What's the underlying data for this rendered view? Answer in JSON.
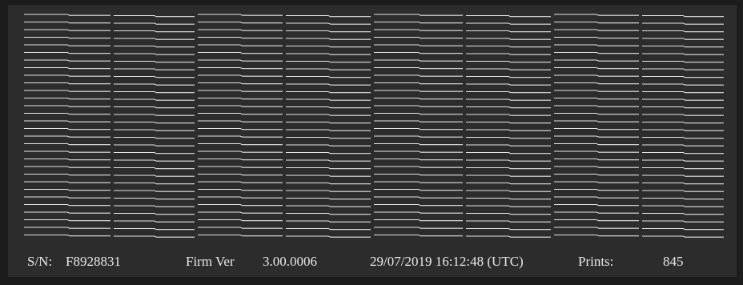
{
  "footer": {
    "serial": {
      "label": "S/N:",
      "value": "F8928831"
    },
    "firmware": {
      "label": "Firm Ver",
      "value": "3.00.0006"
    },
    "timestamp": "29/07/2019 16:12:48 (UTC)",
    "prints": {
      "label": "Prints:",
      "value": "845"
    }
  }
}
